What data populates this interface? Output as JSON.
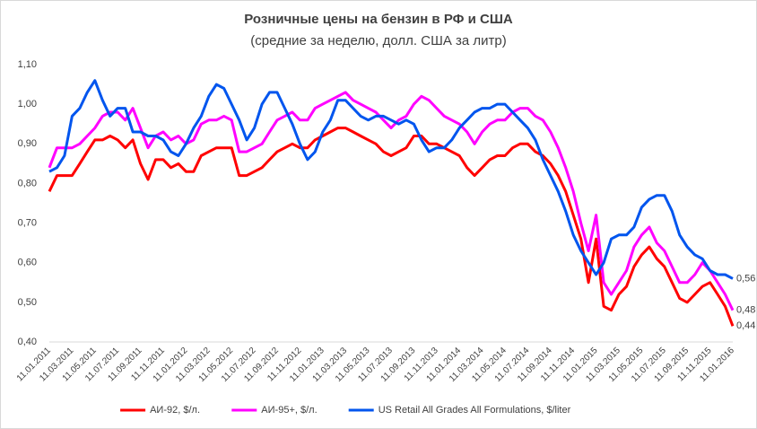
{
  "chart_data": {
    "type": "line",
    "title": "Розничные цены на бензин в РФ и США",
    "subtitle": "(средние за неделю, долл. США за литр)",
    "categories": [
      "11.01.2011",
      null,
      null,
      "11.03.2011",
      null,
      null,
      "11.05.2011",
      null,
      null,
      "11.07.2011",
      null,
      null,
      "11.09.2011",
      null,
      null,
      "11.11.2011",
      null,
      null,
      "11.01.2012",
      null,
      null,
      "11.03.2012",
      null,
      null,
      "11.05.2012",
      null,
      null,
      "11.07.2012",
      null,
      null,
      "11.09.2012",
      null,
      null,
      "11.11.2012",
      null,
      null,
      "11.01.2013",
      null,
      null,
      "11.03.2013",
      null,
      null,
      "11.05.2013",
      null,
      null,
      "11.07.2013",
      null,
      null,
      "11.09.2013",
      null,
      null,
      "11.11.2013",
      null,
      null,
      "11.01.2014",
      null,
      null,
      "11.03.2014",
      null,
      null,
      "11.05.2014",
      null,
      null,
      "11.07.2014",
      null,
      null,
      "11.09.2014",
      null,
      null,
      "11.11.2014",
      null,
      null,
      "11.01.2015",
      null,
      null,
      "11.03.2015",
      null,
      null,
      "11.05.2015",
      null,
      null,
      "11.07.2015",
      null,
      null,
      "11.09.2015",
      null,
      null,
      "11.11.2015",
      null,
      null,
      "11.01.2016"
    ],
    "series": [
      {
        "name": "АИ-92, $/л.",
        "color": "#ff0000",
        "last_label": "0,44",
        "values": [
          0.78,
          0.82,
          0.82,
          0.82,
          0.85,
          0.88,
          0.91,
          0.91,
          0.92,
          0.91,
          0.89,
          0.91,
          0.85,
          0.81,
          0.86,
          0.86,
          0.84,
          0.85,
          0.83,
          0.83,
          0.87,
          0.88,
          0.89,
          0.89,
          0.89,
          0.82,
          0.82,
          0.83,
          0.84,
          0.86,
          0.88,
          0.89,
          0.9,
          0.89,
          0.89,
          0.91,
          0.92,
          0.93,
          0.94,
          0.94,
          0.93,
          0.92,
          0.91,
          0.9,
          0.88,
          0.87,
          0.88,
          0.89,
          0.92,
          0.92,
          0.9,
          0.9,
          0.89,
          0.88,
          0.87,
          0.84,
          0.82,
          0.84,
          0.86,
          0.87,
          0.87,
          0.89,
          0.9,
          0.9,
          0.88,
          0.87,
          0.85,
          0.82,
          0.78,
          0.72,
          0.66,
          0.55,
          0.66,
          0.49,
          0.48,
          0.52,
          0.54,
          0.59,
          0.62,
          0.64,
          0.61,
          0.59,
          0.55,
          0.51,
          0.5,
          0.52,
          0.54,
          0.55,
          0.52,
          0.49,
          0.44
        ]
      },
      {
        "name": "АИ-95+, $/л.",
        "color": "#ff00ff",
        "last_label": "0,48",
        "values": [
          0.84,
          0.89,
          0.89,
          0.89,
          0.9,
          0.92,
          0.94,
          0.97,
          0.98,
          0.98,
          0.96,
          0.99,
          0.94,
          0.89,
          0.92,
          0.93,
          0.91,
          0.92,
          0.9,
          0.91,
          0.95,
          0.96,
          0.96,
          0.97,
          0.96,
          0.88,
          0.88,
          0.89,
          0.9,
          0.93,
          0.96,
          0.97,
          0.98,
          0.96,
          0.96,
          0.99,
          1.0,
          1.01,
          1.02,
          1.03,
          1.01,
          1.0,
          0.99,
          0.98,
          0.96,
          0.94,
          0.96,
          0.97,
          1.0,
          1.02,
          1.01,
          0.99,
          0.97,
          0.96,
          0.95,
          0.93,
          0.9,
          0.93,
          0.95,
          0.96,
          0.96,
          0.98,
          0.99,
          0.99,
          0.97,
          0.96,
          0.93,
          0.89,
          0.84,
          0.78,
          0.7,
          0.63,
          0.72,
          0.55,
          0.52,
          0.55,
          0.58,
          0.64,
          0.67,
          0.69,
          0.65,
          0.63,
          0.59,
          0.55,
          0.55,
          0.57,
          0.6,
          0.58,
          0.55,
          0.52,
          0.48
        ]
      },
      {
        "name": "US Retail All Grades All Formulations, $/liter",
        "color": "#0055ee",
        "last_label": "0,56",
        "values": [
          0.83,
          0.84,
          0.87,
          0.97,
          0.99,
          1.03,
          1.06,
          1.01,
          0.97,
          0.99,
          0.99,
          0.93,
          0.93,
          0.92,
          0.92,
          0.91,
          0.88,
          0.87,
          0.9,
          0.94,
          0.97,
          1.02,
          1.05,
          1.04,
          1.0,
          0.96,
          0.91,
          0.94,
          1.0,
          1.03,
          1.03,
          0.99,
          0.95,
          0.9,
          0.86,
          0.88,
          0.93,
          0.96,
          1.01,
          1.01,
          0.99,
          0.97,
          0.96,
          0.97,
          0.97,
          0.96,
          0.95,
          0.96,
          0.95,
          0.91,
          0.88,
          0.89,
          0.89,
          0.91,
          0.94,
          0.96,
          0.98,
          0.99,
          0.99,
          1.0,
          1.0,
          0.98,
          0.96,
          0.94,
          0.91,
          0.86,
          0.82,
          0.78,
          0.73,
          0.67,
          0.63,
          0.6,
          0.57,
          0.6,
          0.66,
          0.67,
          0.67,
          0.69,
          0.74,
          0.76,
          0.77,
          0.77,
          0.73,
          0.67,
          0.64,
          0.62,
          0.61,
          0.58,
          0.57,
          0.57,
          0.56
        ]
      }
    ],
    "ylim": [
      0.4,
      1.1
    ],
    "yticks": [
      {
        "value": 0.4,
        "label": "0,40"
      },
      {
        "value": 0.5,
        "label": "0,50"
      },
      {
        "value": 0.6,
        "label": "0,60"
      },
      {
        "value": 0.7,
        "label": "0,70"
      },
      {
        "value": 0.8,
        "label": "0,80"
      },
      {
        "value": 0.9,
        "label": "0,90"
      },
      {
        "value": 1.0,
        "label": "1,00"
      },
      {
        "value": 1.1,
        "label": "1,10"
      }
    ],
    "grid": false,
    "legend": "bottom"
  }
}
